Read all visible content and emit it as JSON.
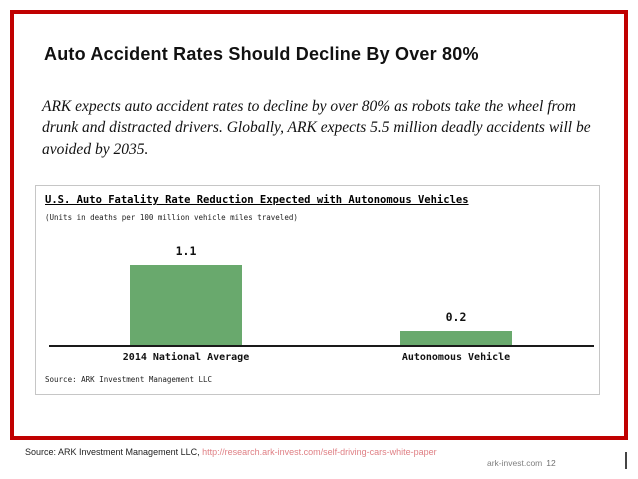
{
  "slide": {
    "title": "Auto Accident Rates Should Decline By Over 80%",
    "body": "ARK expects auto accident rates to decline by over 80% as robots take the wheel from drunk and distracted drivers. Globally, ARK expects 5.5 million deadly accidents will be avoided by 2035."
  },
  "chart_data": {
    "type": "bar",
    "title": "U.S. Auto Fatality Rate Reduction Expected with Autonomous Vehicles",
    "subtitle": "(Units in deaths per 100 million vehicle miles traveled)",
    "categories": [
      "2014 National Average",
      "Autonomous Vehicle"
    ],
    "values": [
      1.1,
      0.2
    ],
    "xlabel": "",
    "ylabel": "",
    "ylim": [
      0,
      1.2
    ],
    "grid": false,
    "legend": false,
    "bar_color": "#69a96d",
    "source": "Source: ARK Investment Management LLC"
  },
  "footer": {
    "source_label": "Source: ARK Investment Management LLC, ",
    "source_url": "http://research.ark-invest.com/self-driving-cars-white-paper",
    "site": "ark-invest.com",
    "page": "12"
  },
  "colors": {
    "frame": "#c00000",
    "bar": "#69a96d",
    "url": "#df7f84"
  }
}
